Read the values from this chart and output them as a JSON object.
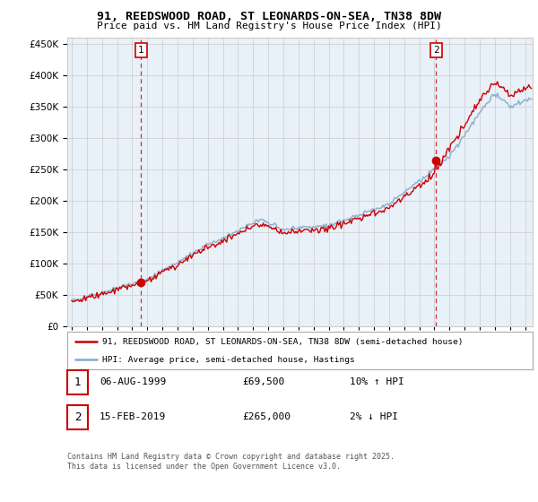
{
  "title": "91, REEDSWOOD ROAD, ST LEONARDS-ON-SEA, TN38 8DW",
  "subtitle": "Price paid vs. HM Land Registry's House Price Index (HPI)",
  "legend_line1": "91, REEDSWOOD ROAD, ST LEONARDS-ON-SEA, TN38 8DW (semi-detached house)",
  "legend_line2": "HPI: Average price, semi-detached house, Hastings",
  "sale1_date": "06-AUG-1999",
  "sale1_price": "£69,500",
  "sale1_hpi": "10% ↑ HPI",
  "sale1_year": 1999.59,
  "sale1_value": 69500,
  "sale2_date": "15-FEB-2019",
  "sale2_price": "£265,000",
  "sale2_hpi": "2% ↓ HPI",
  "sale2_year": 2019.12,
  "sale2_value": 265000,
  "footer": "Contains HM Land Registry data © Crown copyright and database right 2025.\nThis data is licensed under the Open Government Licence v3.0.",
  "ylim": [
    0,
    460000
  ],
  "yticks": [
    0,
    50000,
    100000,
    150000,
    200000,
    250000,
    300000,
    350000,
    400000,
    450000
  ],
  "red_color": "#cc0000",
  "blue_color": "#88aacc",
  "blue_fill": "#dde8f0",
  "vline_color": "#cc0000",
  "grid_color": "#cccccc",
  "bg_color": "#e8f0f8"
}
